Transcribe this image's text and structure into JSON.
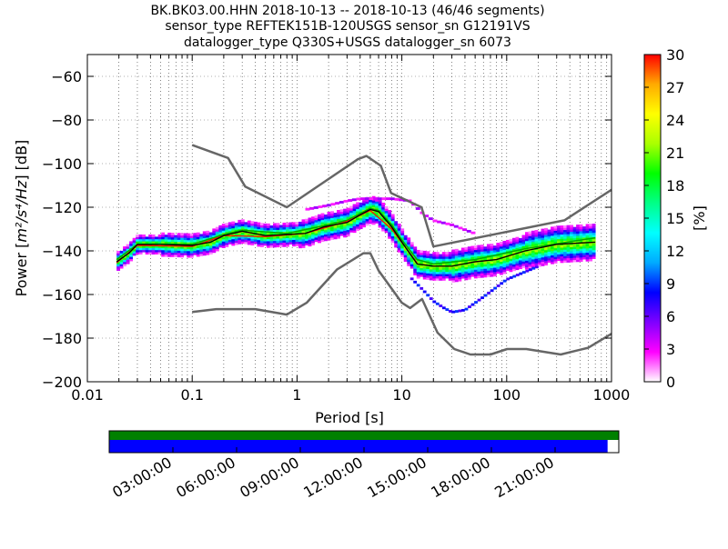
{
  "chart_data": {
    "type": "heatmap",
    "title_lines": [
      "BK.BK03.00.HHN   2018-10-13 -- 2018-10-13  (46/46 segments)",
      "sensor_type REFTEK151B-120USGS sensor_sn G12191VS",
      "datalogger_type Q330S+USGS datalogger_sn 6073"
    ],
    "xlabel": "Period [s]",
    "ylabel_main": "Power [",
    "ylabel_math": "m²/s⁴/Hz",
    "ylabel_end": "] [dB]",
    "x_scale": "log",
    "xlim": [
      0.01,
      1000
    ],
    "ylim": [
      -200,
      -50
    ],
    "x_ticks": [
      {
        "value": 0.01,
        "label": "0.01"
      },
      {
        "value": 0.1,
        "label": "0.1"
      },
      {
        "value": 1,
        "label": "1"
      },
      {
        "value": 10,
        "label": "10"
      },
      {
        "value": 100,
        "label": "100"
      },
      {
        "value": 1000,
        "label": "1000"
      }
    ],
    "y_ticks": [
      {
        "value": -60,
        "label": "−60"
      },
      {
        "value": -80,
        "label": "−80"
      },
      {
        "value": -100,
        "label": "−100"
      },
      {
        "value": -120,
        "label": "−120"
      },
      {
        "value": -140,
        "label": "−140"
      },
      {
        "value": -160,
        "label": "−160"
      },
      {
        "value": -180,
        "label": "−180"
      },
      {
        "value": -200,
        "label": "−200"
      }
    ],
    "grid": "dotted vertical",
    "colorbar": {
      "label": "[%]",
      "min": 0,
      "max": 30,
      "ticks": [
        "0",
        "3",
        "6",
        "9",
        "12",
        "15",
        "18",
        "21",
        "24",
        "27",
        "30"
      ],
      "colors": [
        "#ffffff",
        "#ff00ff",
        "#7f00ff",
        "#0000ff",
        "#00aaff",
        "#00ffff",
        "#00ff88",
        "#00ff00",
        "#aaff00",
        "#ffff00",
        "#ffaa00",
        "#ff0000"
      ]
    },
    "nhnm": {
      "name": "",
      "color": "#666666",
      "points": [
        [
          0.1,
          -91.5
        ],
        [
          0.22,
          -97.4
        ],
        [
          0.32,
          -110.5
        ],
        [
          0.8,
          -120
        ],
        [
          3.8,
          -98
        ],
        [
          4.6,
          -96.5
        ],
        [
          6.3,
          -101
        ],
        [
          7.9,
          -113.5
        ],
        [
          15.4,
          -120
        ],
        [
          20,
          -138
        ],
        [
          354.8,
          -126
        ],
        [
          1000,
          -112
        ]
      ]
    },
    "nlnm": {
      "name": "",
      "color": "#666666",
      "points": [
        [
          0.1,
          -168
        ],
        [
          0.17,
          -166.7
        ],
        [
          0.4,
          -166.7
        ],
        [
          0.8,
          -169.2
        ],
        [
          1.24,
          -163.7
        ],
        [
          2.4,
          -148.6
        ],
        [
          4.3,
          -141.1
        ],
        [
          5,
          -141.1
        ],
        [
          6,
          -149
        ],
        [
          10,
          -163.8
        ],
        [
          12,
          -166.2
        ],
        [
          15.6,
          -162.1
        ],
        [
          21.9,
          -177.5
        ],
        [
          31.6,
          -185
        ],
        [
          45,
          -187.5
        ],
        [
          70,
          -187.5
        ],
        [
          101,
          -185
        ],
        [
          154,
          -185
        ],
        [
          328,
          -187.5
        ],
        [
          600,
          -184.4
        ],
        [
          1000,
          -178
        ]
      ]
    },
    "mode_curve": {
      "name": "",
      "color": "#000000",
      "points": [
        [
          0.019,
          -145
        ],
        [
          0.025,
          -141
        ],
        [
          0.03,
          -137
        ],
        [
          0.05,
          -137
        ],
        [
          0.1,
          -137.5
        ],
        [
          0.15,
          -136
        ],
        [
          0.2,
          -133
        ],
        [
          0.3,
          -131
        ],
        [
          0.5,
          -133
        ],
        [
          0.8,
          -132.5
        ],
        [
          1.2,
          -132
        ],
        [
          1.8,
          -129
        ],
        [
          3,
          -127
        ],
        [
          4,
          -123.5
        ],
        [
          5,
          -121
        ],
        [
          6,
          -122
        ],
        [
          8,
          -129
        ],
        [
          10,
          -136
        ],
        [
          14,
          -146
        ],
        [
          20,
          -147
        ],
        [
          30,
          -147
        ],
        [
          50,
          -145
        ],
        [
          80,
          -144
        ],
        [
          150,
          -140
        ],
        [
          300,
          -137
        ],
        [
          700,
          -136
        ]
      ]
    },
    "mean_curve": {
      "name": "",
      "color": "#00aa00",
      "points": [
        [
          0.019,
          -144
        ],
        [
          0.03,
          -137
        ],
        [
          0.1,
          -137
        ],
        [
          0.2,
          -132.5
        ],
        [
          0.3,
          -130.5
        ],
        [
          0.8,
          -132
        ],
        [
          1.8,
          -128.5
        ],
        [
          3,
          -126
        ],
        [
          5,
          -120.5
        ],
        [
          6,
          -121.5
        ],
        [
          8,
          -128
        ],
        [
          10,
          -135
        ],
        [
          14,
          -144
        ],
        [
          20,
          -146
        ],
        [
          50,
          -144
        ],
        [
          150,
          -139
        ],
        [
          700,
          -134
        ]
      ]
    },
    "median_curve": {
      "name": "",
      "color": "#ff0000",
      "points": [
        [
          0.019,
          -145.5
        ],
        [
          0.03,
          -137.5
        ],
        [
          0.1,
          -138
        ],
        [
          0.2,
          -133
        ],
        [
          0.5,
          -133.5
        ],
        [
          1.2,
          -132
        ],
        [
          3,
          -126.5
        ],
        [
          5,
          -121.5
        ],
        [
          8,
          -130
        ],
        [
          14,
          -145.5
        ]
      ]
    },
    "high_tail": {
      "color": "#ff00ff",
      "points": [
        [
          1.2,
          -121
        ],
        [
          2,
          -119
        ],
        [
          3,
          -117
        ],
        [
          4,
          -116
        ],
        [
          8,
          -116
        ],
        [
          12,
          -117
        ],
        [
          16,
          -123
        ],
        [
          20,
          -126
        ],
        [
          30,
          -128
        ],
        [
          50,
          -132
        ]
      ]
    },
    "low_tail": {
      "color": "#0000ff",
      "points": [
        [
          12,
          -152
        ],
        [
          16,
          -158
        ],
        [
          20,
          -163
        ],
        [
          25,
          -166
        ],
        [
          30,
          -168
        ],
        [
          40,
          -167
        ],
        [
          60,
          -161
        ],
        [
          100,
          -153
        ],
        [
          200,
          -147
        ]
      ]
    },
    "timeline": {
      "data_color": "#008000",
      "coverage_color": "#0000ff",
      "coverage_end_fraction": 0.978,
      "tick_labels": [
        "03:00:00",
        "06:00:00",
        "09:00:00",
        "12:00:00",
        "15:00:00",
        "18:00:00",
        "21:00:00"
      ],
      "tick_fractions": [
        0.125,
        0.25,
        0.375,
        0.5,
        0.625,
        0.75,
        0.875
      ]
    }
  }
}
